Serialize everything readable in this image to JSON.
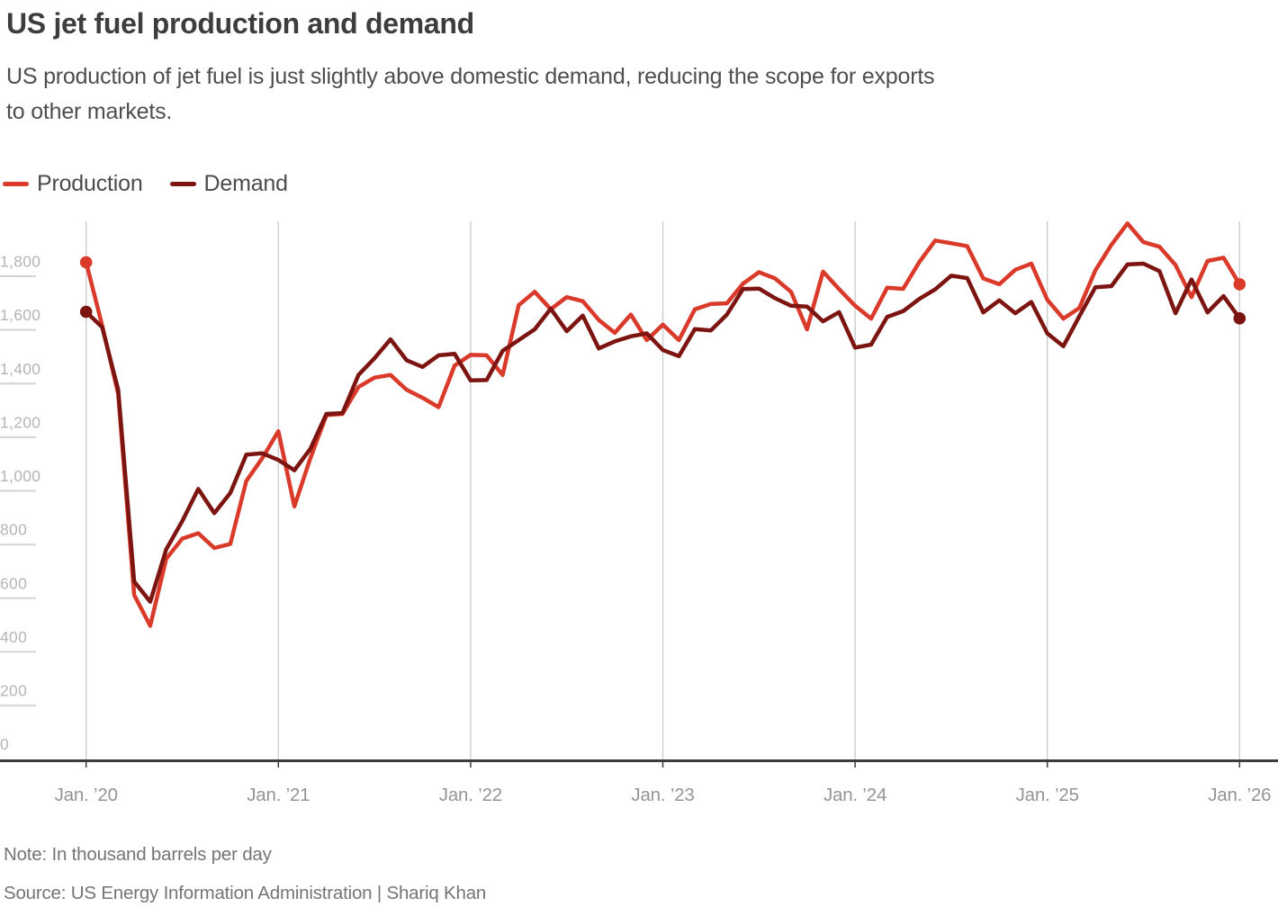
{
  "header": {
    "title": "US jet fuel production and demand",
    "subtitle_line1": "US production of jet fuel is just slightly above domestic demand, reducing the scope for exports",
    "subtitle_line2": "to other markets."
  },
  "legend": {
    "production_label": "Production",
    "demand_label": "Demand"
  },
  "footer": {
    "note": "Note: In thousand barrels per day",
    "source": "Source: US Energy Information Administration | Shariq Khan"
  },
  "chart_data": {
    "type": "line",
    "title": "US jet fuel production and demand",
    "unit": "thousand barrels per day",
    "frequency": "monthly",
    "x_start": "2020-01",
    "x_end": "2026-01",
    "x_tick_labels": [
      "Jan. ’20",
      "Jan. ’21",
      "Jan. ’22",
      "Jan. ’23",
      "Jan. ’24",
      "Jan. ’25",
      "Jan. ’26"
    ],
    "y_ticks": [
      0,
      200,
      400,
      600,
      800,
      1000,
      1200,
      1400,
      1600,
      1800
    ],
    "ylim": [
      0,
      1950
    ],
    "grid": "vertical-year-lines",
    "legend_position": "top-left",
    "end_point_markers": true,
    "series": [
      {
        "name": "Production",
        "color": "#d93a2a",
        "values": [
          1795,
          1560,
          1305,
          555,
          440,
          690,
          765,
          785,
          730,
          745,
          980,
          1065,
          1165,
          885,
          1065,
          1225,
          1230,
          1330,
          1365,
          1375,
          1320,
          1290,
          1255,
          1410,
          1450,
          1448,
          1375,
          1635,
          1685,
          1620,
          1665,
          1650,
          1580,
          1532,
          1600,
          1505,
          1563,
          1505,
          1620,
          1640,
          1642,
          1715,
          1758,
          1735,
          1685,
          1545,
          1760,
          1695,
          1633,
          1585,
          1700,
          1696,
          1795,
          1876,
          1866,
          1855,
          1735,
          1713,
          1767,
          1790,
          1655,
          1585,
          1625,
          1765,
          1860,
          1940,
          1870,
          1853,
          1785,
          1665,
          1800,
          1812,
          1713
        ]
      },
      {
        "name": "Demand",
        "color": "#7c1511",
        "values": [
          1610,
          1553,
          1320,
          605,
          530,
          725,
          830,
          950,
          860,
          935,
          1078,
          1083,
          1058,
          1020,
          1100,
          1230,
          1233,
          1375,
          1437,
          1508,
          1430,
          1405,
          1448,
          1454,
          1355,
          1356,
          1465,
          1505,
          1545,
          1622,
          1538,
          1596,
          1474,
          1500,
          1519,
          1530,
          1468,
          1445,
          1546,
          1541,
          1600,
          1695,
          1697,
          1661,
          1633,
          1630,
          1575,
          1609,
          1477,
          1488,
          1591,
          1613,
          1658,
          1694,
          1745,
          1736,
          1608,
          1653,
          1605,
          1647,
          1530,
          1482,
          1594,
          1702,
          1706,
          1787,
          1790,
          1762,
          1605,
          1731,
          1608,
          1669,
          1586
        ]
      }
    ]
  }
}
